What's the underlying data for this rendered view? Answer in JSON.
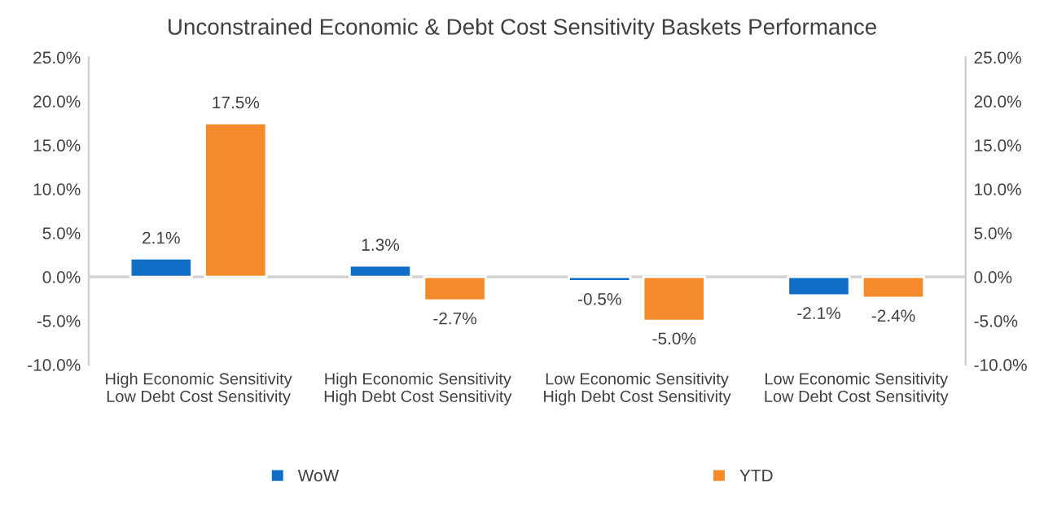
{
  "chart_data": {
    "type": "bar",
    "title": "Unconstrained Economic & Debt Cost Sensitivity Baskets Performance",
    "categories": [
      "High Economic Sensitivity\nLow Debt Cost Sensitivity",
      "High Economic Sensitivity\nHigh Debt Cost Sensitivity",
      "Low Economic Sensitivity\nHigh Debt Cost Sensitivity",
      "Low Economic Sensitivity\nLow Debt Cost Sensitivity"
    ],
    "series": [
      {
        "name": "WoW",
        "color": "#0f6fc6",
        "values": [
          2.1,
          1.3,
          -0.5,
          -2.1
        ],
        "value_labels": [
          "2.1%",
          "1.3%",
          "-0.5%",
          "-2.1%"
        ]
      },
      {
        "name": "YTD",
        "color": "#f58a2a",
        "values": [
          17.5,
          -2.7,
          -5.0,
          -2.4
        ],
        "value_labels": [
          "17.5%",
          "-2.7%",
          "-5.0%",
          "-2.4%"
        ]
      }
    ],
    "ylim": [
      -10,
      25
    ],
    "yticks": [
      {
        "value": -10,
        "label": "-10.0%"
      },
      {
        "value": -5,
        "label": "-5.0%"
      },
      {
        "value": 0,
        "label": "0.0%"
      },
      {
        "value": 5,
        "label": "5.0%"
      },
      {
        "value": 10,
        "label": "10.0%"
      },
      {
        "value": 15,
        "label": "15.0%"
      },
      {
        "value": 20,
        "label": "20.0%"
      },
      {
        "value": 25,
        "label": "25.0%"
      }
    ],
    "y2lim": [
      -10,
      25
    ],
    "y2ticks": [
      {
        "value": -10,
        "label": "-10.0%"
      },
      {
        "value": -5,
        "label": "-5.0%"
      },
      {
        "value": 0,
        "label": "0.0%"
      },
      {
        "value": 5,
        "label": "5.0%"
      },
      {
        "value": 10,
        "label": "10.0%"
      },
      {
        "value": 15,
        "label": "15.0%"
      },
      {
        "value": 20,
        "label": "20.0%"
      },
      {
        "value": 25,
        "label": "25.0%"
      }
    ],
    "ref_lines": [
      {
        "axis": "y",
        "value": 0,
        "color": "#d0d0d0"
      }
    ],
    "grid": false,
    "legend": "bottom"
  }
}
